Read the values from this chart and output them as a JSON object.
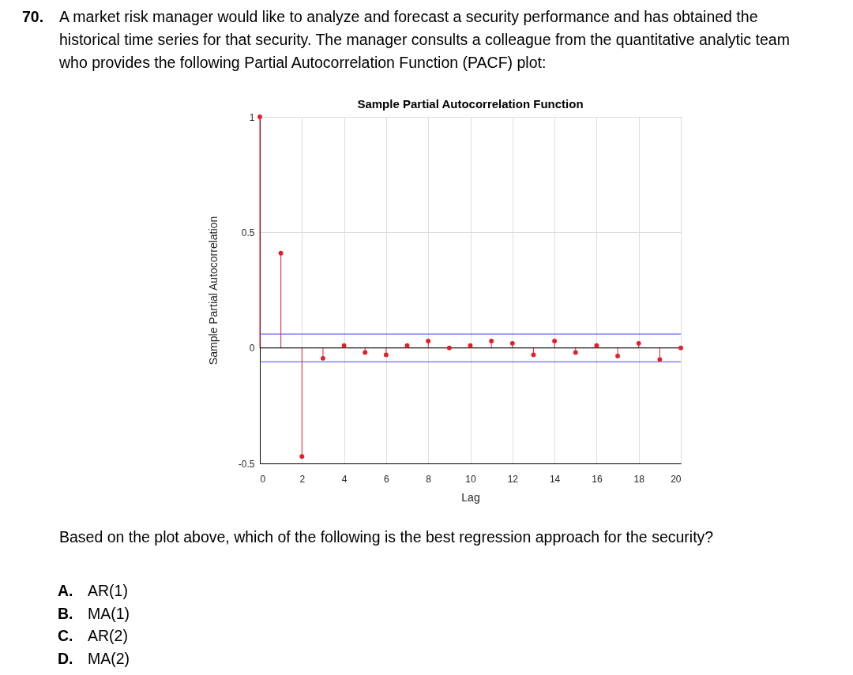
{
  "chart_data": {
    "type": "lollipop",
    "title": "Sample Partial Autocorrelation Function",
    "xlabel": "Lag",
    "ylabel": "Sample Partial Autocorrelation",
    "x": [
      0,
      1,
      2,
      3,
      4,
      5,
      6,
      7,
      8,
      9,
      10,
      11,
      12,
      13,
      14,
      15,
      16,
      17,
      18,
      19,
      20
    ],
    "values": [
      1,
      0.41,
      -0.47,
      -0.045,
      0.01,
      -0.02,
      -0.03,
      0.01,
      0.03,
      0,
      0.01,
      0.03,
      0.02,
      -0.03,
      0.03,
      -0.02,
      0.01,
      -0.035,
      0.02,
      -0.05,
      0
    ],
    "color": "#e41e26",
    "marker": "circle",
    "xlim": [
      0,
      20
    ],
    "xticks": [
      0,
      2,
      4,
      6,
      8,
      10,
      12,
      14,
      16,
      18,
      20
    ],
    "ylim": [
      -0.5,
      1
    ],
    "yticks": [
      -0.5,
      0,
      0.5,
      1
    ],
    "grid": true,
    "ref_lines": [
      {
        "axis": "y",
        "value": 0,
        "color": "#000000"
      },
      {
        "axis": "y",
        "value": 0.06,
        "color": "#4646f0"
      },
      {
        "axis": "y",
        "value": -0.06,
        "color": "#4646f0"
      }
    ],
    "annotations": [
      "70.",
      "A market risk manager would like to analyze and forecast a security performance and has obtained the",
      "historical time series for that security. The manager consults a colleague from the quantitative analytic team",
      "who provides the following Partial Autocorrelation Function (PACF) plot:",
      "Based on the plot above, which of the following is the best regression approach for the security?",
      "A.",
      "AR(1)",
      "B.",
      "MA(1)",
      "C.",
      "AR(2)",
      "D.",
      "MA(2)"
    ]
  }
}
